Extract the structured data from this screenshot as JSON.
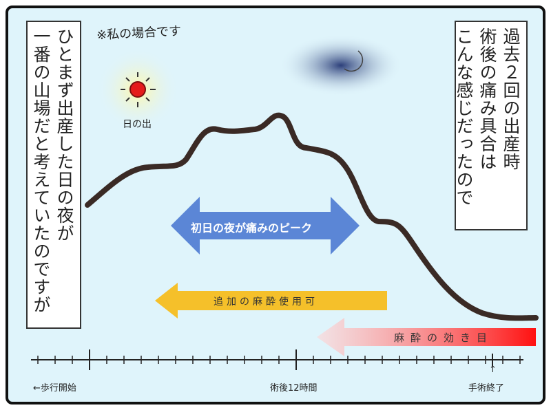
{
  "note": "※私の場合です",
  "left_box": {
    "lines": [
      "ひとまず出産した日の夜が",
      "一番の山場だと考えていたのですが"
    ]
  },
  "right_box": {
    "lines": [
      "過去２回の出産時",
      "術後の痛み具合は",
      "こんな感じだったので"
    ]
  },
  "sun_label": "日の出",
  "arrows": {
    "peak": "初日の夜が痛みのピーク",
    "extra_anesthesia": "追加の麻酔使用可",
    "anesthesia_effect": "麻酔の効き目"
  },
  "timeline": {
    "start": "←歩行開始",
    "middle": "術後12時間",
    "end": "↑",
    "end_label": "手術終了"
  }
}
